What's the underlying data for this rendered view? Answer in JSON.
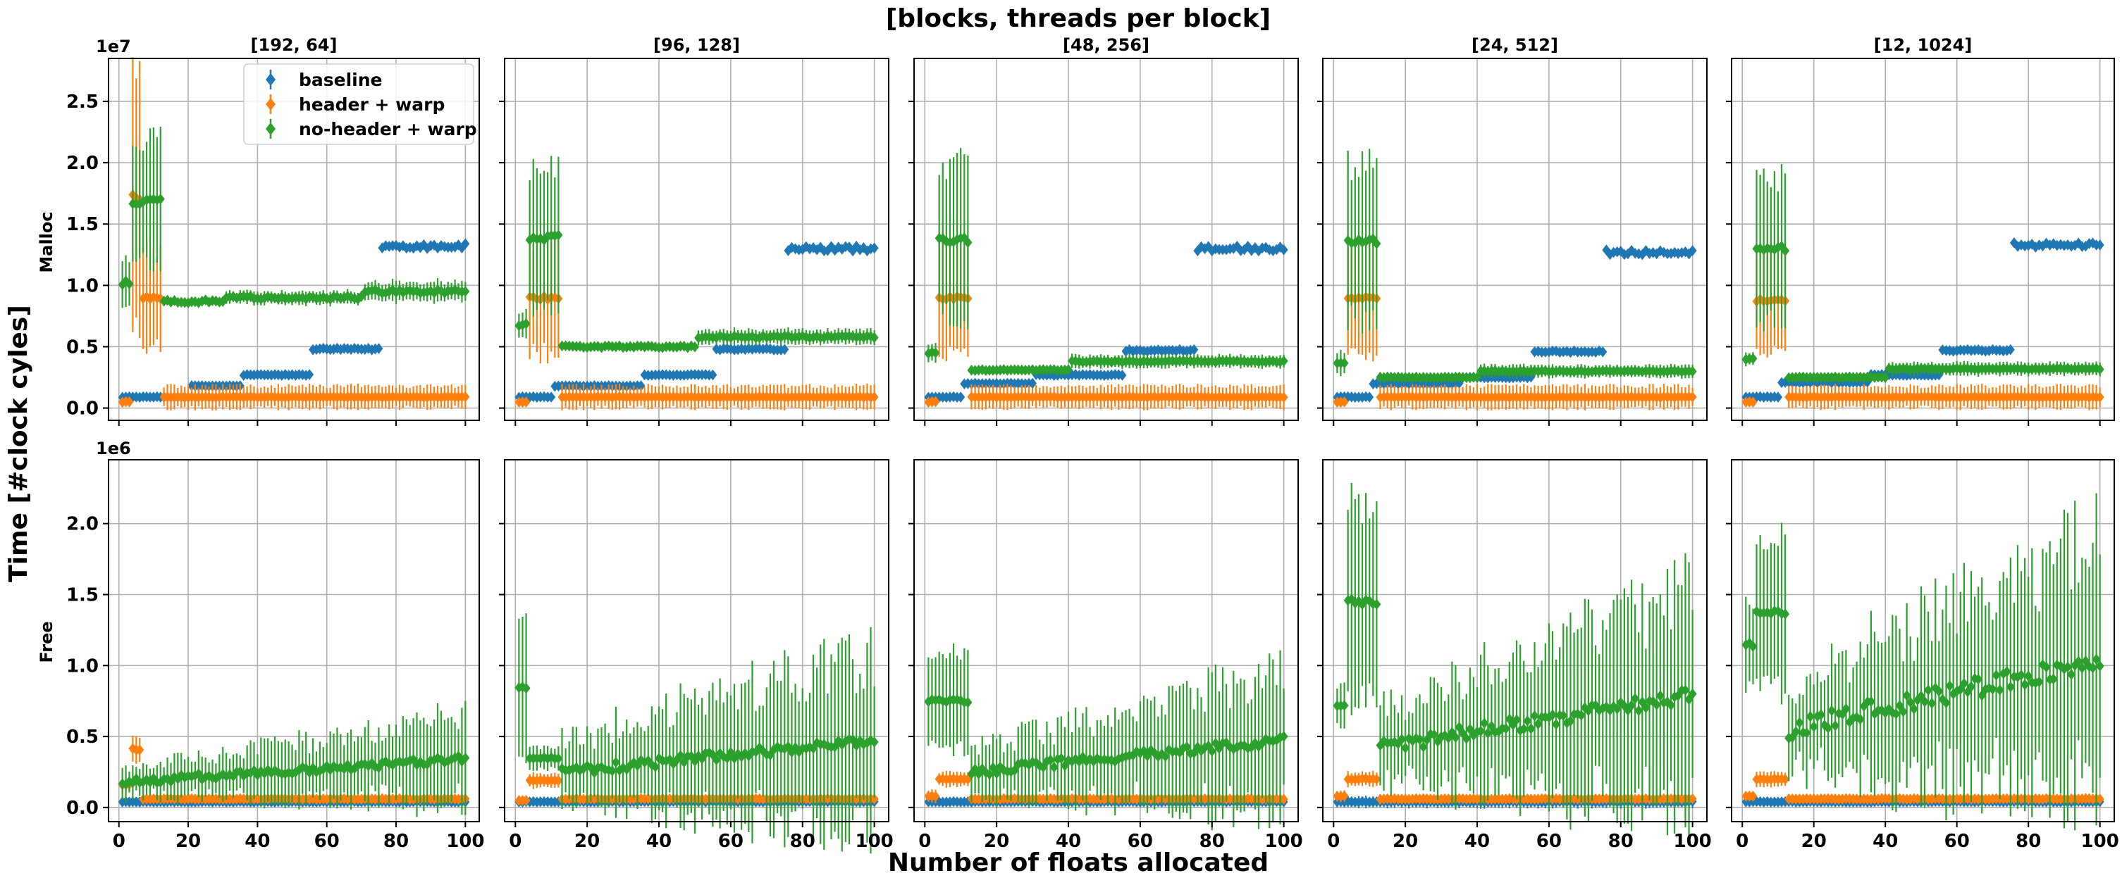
{
  "chart_data": {
    "type": "scatter",
    "title": "[blocks, threads per block]",
    "xlabel": "Number of floats allocated",
    "ylabel": "Time [#clock cyles]",
    "row_labels": [
      "Malloc",
      "Free"
    ],
    "column_titles": [
      "[192, 64]",
      "[96, 128]",
      "[48, 256]",
      "[24, 512]",
      "[12, 1024]"
    ],
    "x_ticks": [
      0,
      20,
      40,
      60,
      80,
      100
    ],
    "xlim": [
      -3,
      104
    ],
    "grid": true,
    "legend": {
      "placement": "top-right of first panel",
      "entries": [
        "baseline",
        "header + warp",
        "no-header + warp"
      ]
    },
    "colors": {
      "baseline": "#1f77b4",
      "header + warp": "#ff7f0e",
      "no-header + warp": "#2ca02c"
    },
    "rows": [
      {
        "label": "Malloc",
        "offset_label": "1e7",
        "ylim": [
          -0.1,
          2.85
        ],
        "y_ticks": [
          0.0,
          0.5,
          1.0,
          1.5,
          2.0,
          2.5
        ],
        "y_tick_labels": [
          "0.0",
          "0.5",
          "1.0",
          "1.5",
          "2.0",
          "2.5"
        ]
      },
      {
        "label": "Free",
        "offset_label": "1e6",
        "ylim": [
          -0.1,
          2.45
        ],
        "y_ticks": [
          0.0,
          0.5,
          1.0,
          1.5,
          2.0
        ],
        "y_tick_labels": [
          "0.0",
          "0.5",
          "1.0",
          "1.5",
          "2.0"
        ]
      }
    ],
    "panels": [
      {
        "row": 0,
        "col": 0,
        "series": [
          {
            "name": "baseline",
            "segments": [
              [
                1,
                10,
                0.09,
                0.0
              ],
              [
                11,
                20,
                0.09,
                0.0
              ],
              [
                21,
                35,
                0.18,
                0.0
              ],
              [
                36,
                55,
                0.27,
                0.0
              ],
              [
                56,
                75,
                0.48,
                0.0
              ],
              [
                76,
                100,
                1.32,
                0.0
              ]
            ]
          },
          {
            "name": "header + warp",
            "segments": [
              [
                1,
                3,
                0.05,
                0.02
              ],
              [
                4,
                6,
                1.72,
                0.95
              ],
              [
                7,
                12,
                0.9,
                0.4
              ],
              [
                13,
                100,
                0.09,
                0.09
              ]
            ]
          },
          {
            "name": "no-header + warp",
            "segments": [
              [
                1,
                3,
                1.02,
                0.18
              ],
              [
                4,
                12,
                1.68,
                0.5
              ],
              [
                13,
                30,
                0.87,
                0.03
              ],
              [
                31,
                70,
                0.9,
                0.05
              ],
              [
                71,
                100,
                0.95,
                0.08
              ]
            ]
          }
        ]
      },
      {
        "row": 0,
        "col": 1,
        "series": [
          {
            "name": "baseline",
            "segments": [
              [
                1,
                10,
                0.09,
                0.0
              ],
              [
                11,
                35,
                0.18,
                0.0
              ],
              [
                36,
                55,
                0.27,
                0.0
              ],
              [
                56,
                75,
                0.48,
                0.0
              ],
              [
                76,
                100,
                1.3,
                0.0
              ]
            ]
          },
          {
            "name": "header + warp",
            "segments": [
              [
                1,
                3,
                0.05,
                0.02
              ],
              [
                4,
                12,
                0.9,
                0.45
              ],
              [
                13,
                100,
                0.09,
                0.09
              ]
            ]
          },
          {
            "name": "no-header + warp",
            "segments": [
              [
                1,
                3,
                0.68,
                0.1
              ],
              [
                4,
                12,
                1.39,
                0.55
              ],
              [
                13,
                50,
                0.5,
                0.03
              ],
              [
                51,
                100,
                0.58,
                0.06
              ]
            ]
          }
        ]
      },
      {
        "row": 0,
        "col": 2,
        "series": [
          {
            "name": "baseline",
            "segments": [
              [
                1,
                10,
                0.09,
                0.0
              ],
              [
                11,
                30,
                0.2,
                0.0
              ],
              [
                31,
                55,
                0.27,
                0.0
              ],
              [
                56,
                75,
                0.47,
                0.0
              ],
              [
                76,
                100,
                1.3,
                0.0
              ]
            ]
          },
          {
            "name": "header + warp",
            "segments": [
              [
                1,
                3,
                0.05,
                0.02
              ],
              [
                4,
                12,
                0.9,
                0.45
              ],
              [
                13,
                100,
                0.09,
                0.09
              ]
            ]
          },
          {
            "name": "no-header + warp",
            "segments": [
              [
                1,
                3,
                0.45,
                0.08
              ],
              [
                4,
                12,
                1.37,
                0.62
              ],
              [
                13,
                40,
                0.31,
                0.03
              ],
              [
                41,
                100,
                0.38,
                0.05
              ]
            ]
          }
        ]
      },
      {
        "row": 0,
        "col": 3,
        "series": [
          {
            "name": "baseline",
            "segments": [
              [
                1,
                10,
                0.09,
                0.0
              ],
              [
                11,
                35,
                0.2,
                0.0
              ],
              [
                36,
                55,
                0.25,
                0.0
              ],
              [
                56,
                75,
                0.46,
                0.0
              ],
              [
                76,
                100,
                1.27,
                0.0
              ]
            ]
          },
          {
            "name": "header + warp",
            "segments": [
              [
                1,
                3,
                0.05,
                0.02
              ],
              [
                4,
                12,
                0.9,
                0.45
              ],
              [
                13,
                100,
                0.09,
                0.09
              ]
            ]
          },
          {
            "name": "no-header + warp",
            "segments": [
              [
                1,
                3,
                0.37,
                0.1
              ],
              [
                4,
                12,
                1.36,
                0.62
              ],
              [
                13,
                40,
                0.25,
                0.03
              ],
              [
                41,
                100,
                0.3,
                0.05
              ]
            ]
          }
        ]
      },
      {
        "row": 0,
        "col": 4,
        "series": [
          {
            "name": "baseline",
            "segments": [
              [
                1,
                10,
                0.09,
                0.0
              ],
              [
                11,
                35,
                0.21,
                0.0
              ],
              [
                36,
                55,
                0.27,
                0.0
              ],
              [
                56,
                75,
                0.47,
                0.0
              ],
              [
                76,
                100,
                1.33,
                0.0
              ]
            ]
          },
          {
            "name": "header + warp",
            "segments": [
              [
                1,
                3,
                0.05,
                0.02
              ],
              [
                4,
                12,
                0.88,
                0.4
              ],
              [
                13,
                100,
                0.09,
                0.09
              ]
            ]
          },
          {
            "name": "no-header + warp",
            "segments": [
              [
                1,
                3,
                0.4,
                0.05
              ],
              [
                4,
                12,
                1.3,
                0.57
              ],
              [
                13,
                40,
                0.25,
                0.03
              ],
              [
                41,
                100,
                0.32,
                0.05
              ]
            ]
          }
        ]
      },
      {
        "row": 1,
        "col": 0,
        "series": [
          {
            "name": "baseline",
            "segments": [
              [
                1,
                100,
                0.04,
                0.03
              ]
            ]
          },
          {
            "name": "header + warp",
            "segments": [
              [
                1,
                3,
                0.16,
                0.05
              ],
              [
                4,
                6,
                0.41,
                0.1
              ],
              [
                7,
                100,
                0.06,
                0.03
              ]
            ]
          },
          {
            "name": "no-header + warp",
            "segments": [
              [
                1,
                100,
                0.18,
                0.2
              ]
            ]
          }
        ]
      },
      {
        "row": 1,
        "col": 1,
        "series": [
          {
            "name": "baseline",
            "segments": [
              [
                1,
                100,
                0.04,
                0.02
              ]
            ]
          },
          {
            "name": "header + warp",
            "segments": [
              [
                1,
                3,
                0.05,
                0.03
              ],
              [
                4,
                12,
                0.19,
                0.05
              ],
              [
                13,
                100,
                0.06,
                0.03
              ]
            ]
          },
          {
            "name": "no-header + warp",
            "segments": [
              [
                1,
                3,
                0.85,
                0.5
              ],
              [
                4,
                12,
                0.35,
                0.08
              ],
              [
                13,
                100,
                0.25,
                0.42
              ]
            ]
          }
        ]
      },
      {
        "row": 1,
        "col": 2,
        "series": [
          {
            "name": "baseline",
            "segments": [
              [
                1,
                100,
                0.04,
                0.02
              ]
            ]
          },
          {
            "name": "header + warp",
            "segments": [
              [
                1,
                3,
                0.08,
                0.04
              ],
              [
                4,
                12,
                0.2,
                0.05
              ],
              [
                13,
                100,
                0.06,
                0.03
              ]
            ]
          },
          {
            "name": "no-header + warp",
            "segments": [
              [
                1,
                12,
                0.75,
                0.35
              ],
              [
                13,
                100,
                0.25,
                0.32
              ]
            ]
          }
        ]
      },
      {
        "row": 1,
        "col": 3,
        "series": [
          {
            "name": "baseline",
            "segments": [
              [
                1,
                100,
                0.04,
                0.04
              ]
            ]
          },
          {
            "name": "header + warp",
            "segments": [
              [
                1,
                3,
                0.08,
                0.04
              ],
              [
                4,
                12,
                0.2,
                0.05
              ],
              [
                13,
                100,
                0.06,
                0.03
              ]
            ]
          },
          {
            "name": "no-header + warp",
            "segments": [
              [
                1,
                3,
                0.72,
                0.15
              ],
              [
                4,
                12,
                1.45,
                0.7
              ],
              [
                13,
                100,
                0.42,
                0.5
              ]
            ]
          }
        ]
      },
      {
        "row": 1,
        "col": 4,
        "series": [
          {
            "name": "baseline",
            "segments": [
              [
                1,
                100,
                0.04,
                0.02
              ]
            ]
          },
          {
            "name": "header + warp",
            "segments": [
              [
                1,
                3,
                0.08,
                0.04
              ],
              [
                4,
                12,
                0.2,
                0.05
              ],
              [
                13,
                100,
                0.06,
                0.03
              ]
            ]
          },
          {
            "name": "no-header + warp",
            "segments": [
              [
                1,
                3,
                1.15,
                0.3
              ],
              [
                4,
                12,
                1.38,
                0.55
              ],
              [
                13,
                100,
                0.55,
                0.6
              ]
            ]
          }
        ]
      }
    ]
  }
}
